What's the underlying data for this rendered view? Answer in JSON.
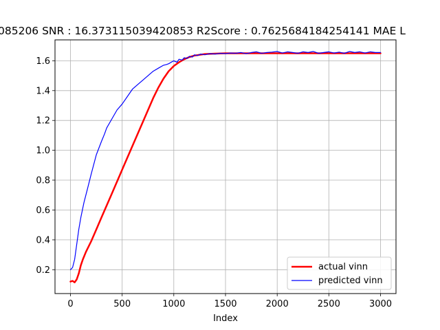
{
  "chart_data": {
    "type": "line",
    "title": "085206  SNR : 16.373115039420853 R2Score : 0.7625684184254141 MAE L",
    "xlabel": "Index",
    "ylabel": "",
    "xlim": [
      -150,
      3150
    ],
    "ylim": [
      0.04,
      1.74
    ],
    "xticks": [
      0,
      500,
      1000,
      1500,
      2000,
      2500,
      3000
    ],
    "xtick_labels": [
      "0",
      "500",
      "1000",
      "1500",
      "2000",
      "2500",
      "3000"
    ],
    "yticks": [
      0.2,
      0.4,
      0.6,
      0.8,
      1.0,
      1.2,
      1.4,
      1.6
    ],
    "ytick_labels": [
      "0.2",
      "0.4",
      "0.6",
      "0.8",
      "1.0",
      "1.2",
      "1.4",
      "1.6"
    ],
    "grid": true,
    "legend_position": "lower-right",
    "series": [
      {
        "name": "actual vinn",
        "color": "#ff0000",
        "x": [
          0,
          20,
          40,
          60,
          80,
          100,
          120,
          150,
          200,
          250,
          300,
          400,
          500,
          600,
          700,
          800,
          850,
          900,
          950,
          1000,
          1050,
          1100,
          1150,
          1200,
          1300,
          1400,
          1500,
          1750,
          2000,
          2500,
          3000
        ],
        "y": [
          0.12,
          0.125,
          0.115,
          0.135,
          0.175,
          0.23,
          0.27,
          0.32,
          0.39,
          0.47,
          0.55,
          0.71,
          0.87,
          1.03,
          1.19,
          1.35,
          1.42,
          1.48,
          1.53,
          1.565,
          1.59,
          1.61,
          1.625,
          1.635,
          1.645,
          1.648,
          1.65,
          1.65,
          1.65,
          1.65,
          1.65
        ]
      },
      {
        "name": "predicted vinn",
        "color": "#0000ff",
        "x": [
          0,
          20,
          40,
          60,
          80,
          100,
          130,
          160,
          200,
          250,
          300,
          330,
          350,
          400,
          450,
          500,
          550,
          600,
          650,
          700,
          750,
          800,
          850,
          900,
          930,
          950,
          1000,
          1030,
          1050,
          1080,
          1100,
          1130,
          1150,
          1180,
          1200,
          1230,
          1260,
          1300,
          1350,
          1400,
          1450,
          1500,
          1550,
          1600,
          1650,
          1700,
          1750,
          1800,
          1850,
          1900,
          1950,
          2000,
          2050,
          2100,
          2150,
          2200,
          2250,
          2300,
          2350,
          2400,
          2450,
          2500,
          2550,
          2600,
          2650,
          2700,
          2750,
          2800,
          2850,
          2900,
          2950,
          3000
        ],
        "y": [
          0.2,
          0.215,
          0.27,
          0.37,
          0.47,
          0.55,
          0.65,
          0.73,
          0.84,
          0.97,
          1.06,
          1.11,
          1.15,
          1.21,
          1.27,
          1.31,
          1.36,
          1.41,
          1.44,
          1.47,
          1.5,
          1.53,
          1.55,
          1.57,
          1.575,
          1.58,
          1.6,
          1.59,
          1.61,
          1.605,
          1.62,
          1.615,
          1.63,
          1.625,
          1.64,
          1.635,
          1.645,
          1.64,
          1.648,
          1.645,
          1.65,
          1.648,
          1.652,
          1.65,
          1.655,
          1.648,
          1.655,
          1.66,
          1.65,
          1.655,
          1.658,
          1.662,
          1.652,
          1.66,
          1.655,
          1.65,
          1.66,
          1.655,
          1.662,
          1.65,
          1.655,
          1.66,
          1.652,
          1.658,
          1.65,
          1.662,
          1.655,
          1.66,
          1.652,
          1.66,
          1.655,
          1.655
        ]
      }
    ]
  }
}
